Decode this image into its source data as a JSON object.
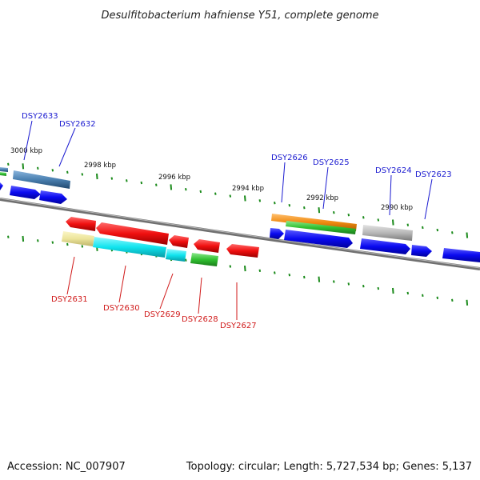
{
  "title": "Desulfitobacterium hafniense Y51, complete genome",
  "footer": {
    "accession": "Accession: NC_007907",
    "summary": "Topology: circular; Length: 5,727,534 bp; Genes: 5,137"
  },
  "scale_labels": [
    "3000 kbp",
    "2998 kbp",
    "2996 kbp",
    "2994 kbp",
    "2992 kbp",
    "2990 kbp"
  ],
  "genes_top": [
    {
      "id": "DSY2633",
      "color": "#1b1bd6"
    },
    {
      "id": "DSY2632",
      "color": "#1b1bd6"
    },
    {
      "id": "DSY2626",
      "color": "#1b1bd6"
    },
    {
      "id": "DSY2625",
      "color": "#1b1bd6"
    },
    {
      "id": "DSY2624",
      "color": "#1b1bd6"
    },
    {
      "id": "DSY2623",
      "color": "#1b1bd6"
    }
  ],
  "genes_bottom": [
    {
      "id": "DSY2631",
      "color": "#d81b1b"
    },
    {
      "id": "DSY2630",
      "color": "#d81b1b"
    },
    {
      "id": "DSY2629",
      "color": "#d81b1b"
    },
    {
      "id": "DSY2628",
      "color": "#d81b1b"
    },
    {
      "id": "DSY2627",
      "color": "#d81b1b"
    }
  ],
  "colors": {
    "forward_strand": "#1b1bd6",
    "reverse_strand": "#e01515",
    "backbone": "#808080",
    "tick": "#1a8a1a",
    "cyan_feature": "#18e0e8",
    "yellow_feature": "#ece49a",
    "green_feature": "#30c030",
    "orange_feature": "#f08a10",
    "grey_feature": "#b8b8b8",
    "steel_feature": "#4a80b0"
  }
}
